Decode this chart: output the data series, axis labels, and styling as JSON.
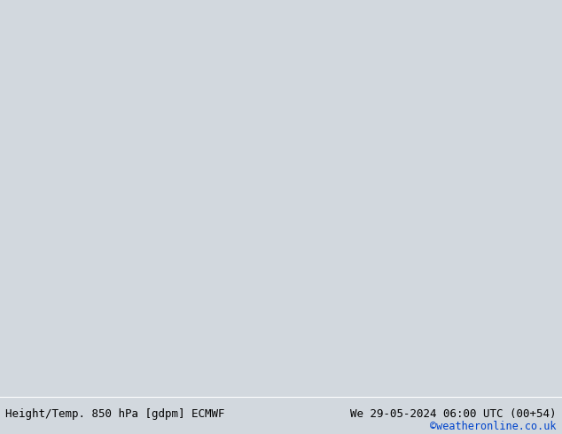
{
  "title_left": "Height/Temp. 850 hPa [gdpm] ECMWF",
  "title_right": "We 29-05-2024 06:00 UTC (00+54)",
  "credit": "©weatheronline.co.uk",
  "bg_color": "#d2d8de",
  "ocean_fill": "#d2d8de",
  "land_fill": "#c8e8a0",
  "land_fill2": "#d4eeac",
  "border_color": "#aaaaaa",
  "fig_width": 6.34,
  "fig_height": 4.9,
  "dpi": 100,
  "bottom_text_color": "#000000",
  "credit_color": "#0044cc",
  "title_fontsize": 9.0,
  "credit_fontsize": 8.5,
  "colors": {
    "black": "#000000",
    "red": "#dd2200",
    "orange": "#ff8800",
    "magenta": "#cc00aa",
    "green": "#88cc00",
    "cyan": "#00aaaa",
    "pink": "#ff44aa"
  },
  "extent": [
    -20,
    55,
    -40,
    40
  ],
  "contour_lw": 1.1,
  "thick_lw": 2.0
}
